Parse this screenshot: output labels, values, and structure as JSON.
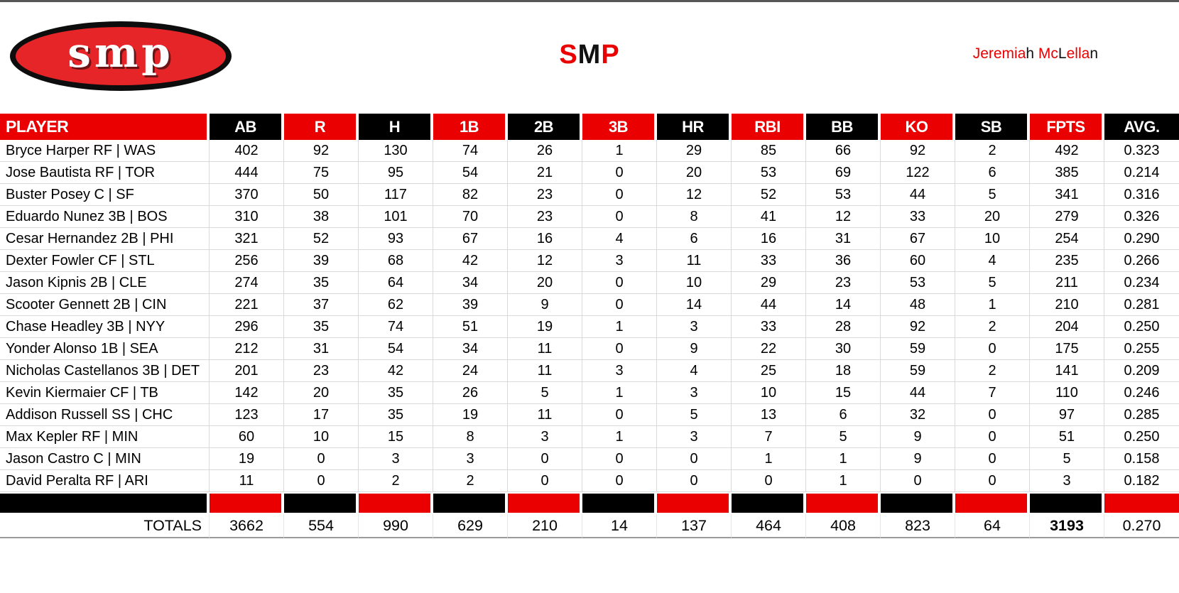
{
  "header": {
    "logo_text": "SMP",
    "title_segments": [
      {
        "text": "S",
        "color": "#ea0000"
      },
      {
        "text": "M",
        "color": "#111111"
      },
      {
        "text": "P",
        "color": "#ea0000"
      }
    ],
    "owner_segments": [
      {
        "text": "Jeremia",
        "color": "#ea0000"
      },
      {
        "text": "h ",
        "color": "#111111"
      },
      {
        "text": "Mc",
        "color": "#ea0000"
      },
      {
        "text": "L",
        "color": "#111111"
      },
      {
        "text": "ella",
        "color": "#ea0000"
      },
      {
        "text": "n",
        "color": "#111111"
      }
    ]
  },
  "colors": {
    "accent_red": "#ea0000",
    "accent_black": "#000000",
    "logo_red": "#e52528",
    "grid_line": "#d9d9d9"
  },
  "chart_data": {
    "type": "table",
    "title": "SMP",
    "columns": [
      "PLAYER",
      "AB",
      "R",
      "H",
      "1B",
      "2B",
      "3B",
      "HR",
      "RBI",
      "BB",
      "KO",
      "SB",
      "FPTS",
      "AVG."
    ],
    "header_fill_pattern": [
      "red",
      "black",
      "red",
      "black",
      "red",
      "black",
      "red",
      "black",
      "red",
      "black",
      "red",
      "black",
      "red",
      "black"
    ],
    "rows": [
      {
        "player": "Bryce Harper RF | WAS",
        "values": [
          "402",
          "92",
          "130",
          "74",
          "26",
          "1",
          "29",
          "85",
          "66",
          "92",
          "2",
          "492",
          "0.323"
        ]
      },
      {
        "player": "Jose Bautista RF | TOR",
        "values": [
          "444",
          "75",
          "95",
          "54",
          "21",
          "0",
          "20",
          "53",
          "69",
          "122",
          "6",
          "385",
          "0.214"
        ]
      },
      {
        "player": "Buster Posey C | SF",
        "values": [
          "370",
          "50",
          "117",
          "82",
          "23",
          "0",
          "12",
          "52",
          "53",
          "44",
          "5",
          "341",
          "0.316"
        ]
      },
      {
        "player": "Eduardo Nunez 3B | BOS",
        "values": [
          "310",
          "38",
          "101",
          "70",
          "23",
          "0",
          "8",
          "41",
          "12",
          "33",
          "20",
          "279",
          "0.326"
        ]
      },
      {
        "player": "Cesar Hernandez 2B | PHI",
        "values": [
          "321",
          "52",
          "93",
          "67",
          "16",
          "4",
          "6",
          "16",
          "31",
          "67",
          "10",
          "254",
          "0.290"
        ]
      },
      {
        "player": "Dexter Fowler CF | STL",
        "values": [
          "256",
          "39",
          "68",
          "42",
          "12",
          "3",
          "11",
          "33",
          "36",
          "60",
          "4",
          "235",
          "0.266"
        ]
      },
      {
        "player": "Jason Kipnis 2B | CLE",
        "values": [
          "274",
          "35",
          "64",
          "34",
          "20",
          "0",
          "10",
          "29",
          "23",
          "53",
          "5",
          "211",
          "0.234"
        ]
      },
      {
        "player": "Scooter Gennett 2B | CIN",
        "values": [
          "221",
          "37",
          "62",
          "39",
          "9",
          "0",
          "14",
          "44",
          "14",
          "48",
          "1",
          "210",
          "0.281"
        ]
      },
      {
        "player": "Chase Headley 3B | NYY",
        "values": [
          "296",
          "35",
          "74",
          "51",
          "19",
          "1",
          "3",
          "33",
          "28",
          "92",
          "2",
          "204",
          "0.250"
        ]
      },
      {
        "player": "Yonder Alonso 1B | SEA",
        "values": [
          "212",
          "31",
          "54",
          "34",
          "11",
          "0",
          "9",
          "22",
          "30",
          "59",
          "0",
          "175",
          "0.255"
        ]
      },
      {
        "player": "Nicholas Castellanos 3B | DET",
        "values": [
          "201",
          "23",
          "42",
          "24",
          "11",
          "3",
          "4",
          "25",
          "18",
          "59",
          "2",
          "141",
          "0.209"
        ]
      },
      {
        "player": "Kevin Kiermaier CF | TB",
        "values": [
          "142",
          "20",
          "35",
          "26",
          "5",
          "1",
          "3",
          "10",
          "15",
          "44",
          "7",
          "110",
          "0.246"
        ]
      },
      {
        "player": "Addison Russell SS | CHC",
        "values": [
          "123",
          "17",
          "35",
          "19",
          "11",
          "0",
          "5",
          "13",
          "6",
          "32",
          "0",
          "97",
          "0.285"
        ]
      },
      {
        "player": "Max Kepler RF | MIN",
        "values": [
          "60",
          "10",
          "15",
          "8",
          "3",
          "1",
          "3",
          "7",
          "5",
          "9",
          "0",
          "51",
          "0.250"
        ]
      },
      {
        "player": "Jason Castro C | MIN",
        "values": [
          "19",
          "0",
          "3",
          "3",
          "0",
          "0",
          "0",
          "1",
          "1",
          "9",
          "0",
          "5",
          "0.158"
        ]
      },
      {
        "player": "David Peralta RF | ARI",
        "values": [
          "11",
          "0",
          "2",
          "2",
          "0",
          "0",
          "0",
          "0",
          "1",
          "0",
          "0",
          "3",
          "0.182"
        ]
      }
    ],
    "totals_label": "TOTALS",
    "totals": [
      "3662",
      "554",
      "990",
      "629",
      "210",
      "14",
      "137",
      "464",
      "408",
      "823",
      "64",
      "3193",
      "0.270"
    ],
    "bold_total_column": "FPTS",
    "layout": {
      "grid": true,
      "header_row_colors": "alternating red/black",
      "separator_row_colors": "inverted alternating black/red"
    }
  }
}
